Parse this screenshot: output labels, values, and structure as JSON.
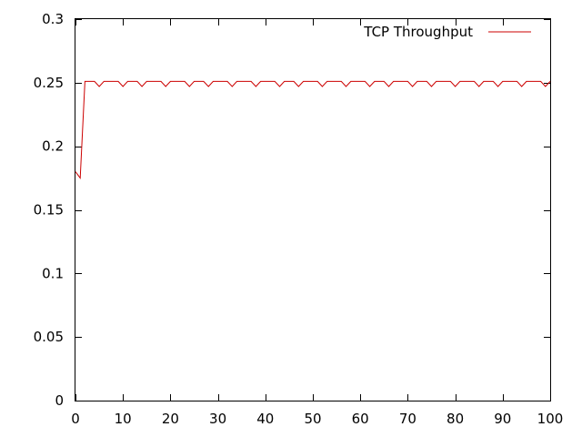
{
  "chart_data": {
    "type": "line",
    "title": "",
    "xlabel": "",
    "ylabel": "",
    "xlim": [
      0,
      100
    ],
    "ylim": [
      0,
      0.3
    ],
    "x_ticks": [
      0,
      10,
      20,
      30,
      40,
      50,
      60,
      70,
      80,
      90,
      100
    ],
    "x_tick_labels": [
      "0",
      "10",
      "20",
      "30",
      "40",
      "50",
      "60",
      "70",
      "80",
      "90",
      "100"
    ],
    "y_ticks": [
      0,
      0.05,
      0.1,
      0.15,
      0.2,
      0.25,
      0.3
    ],
    "y_tick_labels": [
      "0",
      "0.05",
      "0.1",
      "0.15",
      "0.2",
      "0.25",
      "0.3"
    ],
    "grid": false,
    "legend_position": "top-right",
    "series": [
      {
        "name": "TCP Throughput",
        "color": "#cc0000",
        "x": [
          0,
          1,
          2,
          3,
          4,
          5,
          6,
          7,
          8,
          9,
          10,
          11,
          12,
          13,
          14,
          15,
          16,
          17,
          18,
          19,
          20,
          21,
          22,
          23,
          24,
          25,
          26,
          27,
          28,
          29,
          30,
          31,
          32,
          33,
          34,
          35,
          36,
          37,
          38,
          39,
          40,
          41,
          42,
          43,
          44,
          45,
          46,
          47,
          48,
          49,
          50,
          51,
          52,
          53,
          54,
          55,
          56,
          57,
          58,
          59,
          60,
          61,
          62,
          63,
          64,
          65,
          66,
          67,
          68,
          69,
          70,
          71,
          72,
          73,
          74,
          75,
          76,
          77,
          78,
          79,
          80,
          81,
          82,
          83,
          84,
          85,
          86,
          87,
          88,
          89,
          90,
          91,
          92,
          93,
          94,
          95,
          96,
          97,
          98,
          99,
          100
        ],
        "y": [
          0.18,
          0.175,
          0.251,
          0.251,
          0.251,
          0.247,
          0.251,
          0.251,
          0.251,
          0.251,
          0.247,
          0.251,
          0.251,
          0.251,
          0.247,
          0.251,
          0.251,
          0.251,
          0.251,
          0.247,
          0.251,
          0.251,
          0.251,
          0.251,
          0.247,
          0.251,
          0.251,
          0.251,
          0.247,
          0.251,
          0.251,
          0.251,
          0.251,
          0.247,
          0.251,
          0.251,
          0.251,
          0.251,
          0.247,
          0.251,
          0.251,
          0.251,
          0.251,
          0.247,
          0.251,
          0.251,
          0.251,
          0.247,
          0.251,
          0.251,
          0.251,
          0.251,
          0.247,
          0.251,
          0.251,
          0.251,
          0.251,
          0.247,
          0.251,
          0.251,
          0.251,
          0.251,
          0.247,
          0.251,
          0.251,
          0.251,
          0.247,
          0.251,
          0.251,
          0.251,
          0.251,
          0.247,
          0.251,
          0.251,
          0.251,
          0.247,
          0.251,
          0.251,
          0.251,
          0.251,
          0.247,
          0.251,
          0.251,
          0.251,
          0.251,
          0.247,
          0.251,
          0.251,
          0.251,
          0.247,
          0.251,
          0.251,
          0.251,
          0.251,
          0.247,
          0.251,
          0.251,
          0.251,
          0.251,
          0.247,
          0.251
        ]
      }
    ]
  }
}
